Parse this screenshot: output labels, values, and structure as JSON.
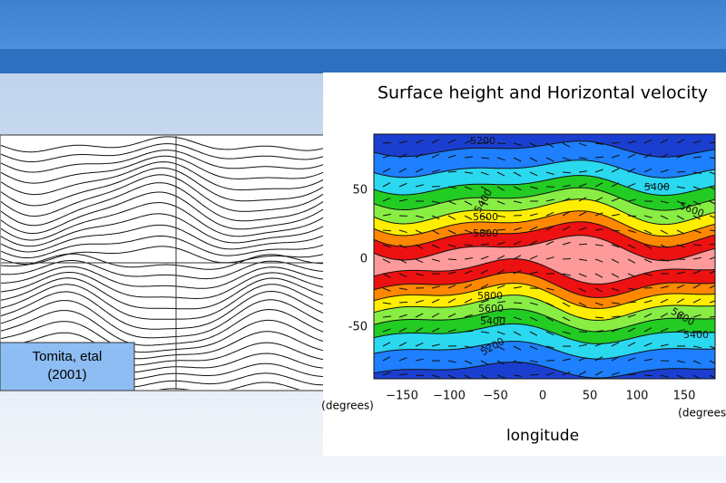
{
  "slide": {
    "caption": {
      "line1": "Tomita, etal",
      "line2": "(2001)"
    },
    "right_panel": {
      "title": "Surface height and Horizontal velocity",
      "yticks": [
        "50",
        "0",
        "-50"
      ],
      "xticks": [
        "−150",
        "−100",
        "−50",
        "0",
        "50",
        "100",
        "150"
      ],
      "y_unit": "(degrees)",
      "x_unit": "(degrees)",
      "xlabel": "longitude",
      "contour_labels": [
        "5200",
        "5400",
        "5600",
        "5800",
        "5400",
        "5600",
        "5800",
        "5600",
        "5400",
        "5200",
        "5600",
        "5400"
      ]
    }
  }
}
